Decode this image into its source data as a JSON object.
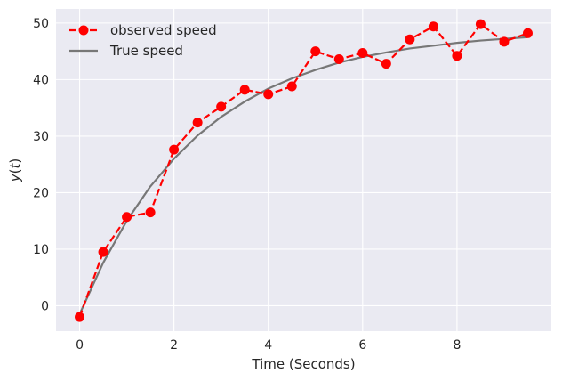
{
  "chart_data": {
    "type": "line",
    "title": "",
    "xlabel": "Time (Seconds)",
    "ylabel": "y(t)",
    "xlim": [
      -0.5,
      10.0
    ],
    "ylim": [
      -4.5,
      52.5
    ],
    "xticks": [
      0,
      2,
      4,
      6,
      8
    ],
    "yticks": [
      0,
      10,
      20,
      30,
      40,
      50
    ],
    "grid": true,
    "legend_position": "top-left",
    "background_color": "#eaeaf2",
    "series": [
      {
        "name": "observed speed",
        "style": "dashed-line-with-circle-markers",
        "color": "#ff0000",
        "x": [
          0,
          0.5,
          1.0,
          1.5,
          2.0,
          2.5,
          3.0,
          3.5,
          4.0,
          4.5,
          5.0,
          5.5,
          6.0,
          6.5,
          7.0,
          7.5,
          8.0,
          8.5,
          9.0,
          9.5
        ],
        "values": [
          -2.0,
          9.5,
          15.7,
          16.5,
          27.6,
          32.4,
          35.2,
          38.2,
          37.4,
          38.8,
          45.0,
          43.6,
          44.7,
          42.8,
          47.1,
          49.4,
          44.2,
          49.8,
          46.7,
          48.2
        ]
      },
      {
        "name": "True speed",
        "style": "solid-line",
        "color": "#777777",
        "x": [
          0,
          0.5,
          1.0,
          1.5,
          2.0,
          2.5,
          3.0,
          3.5,
          4.0,
          4.5,
          5.0,
          5.5,
          6.0,
          6.5,
          7.0,
          7.5,
          8.0,
          8.5,
          9.0,
          9.5
        ],
        "values": [
          -1.5,
          7.6,
          15.0,
          21.1,
          26.0,
          30.1,
          33.4,
          36.1,
          38.4,
          40.2,
          41.7,
          43.0,
          44.0,
          44.8,
          45.5,
          46.0,
          46.5,
          46.9,
          47.2,
          47.5
        ]
      }
    ]
  }
}
